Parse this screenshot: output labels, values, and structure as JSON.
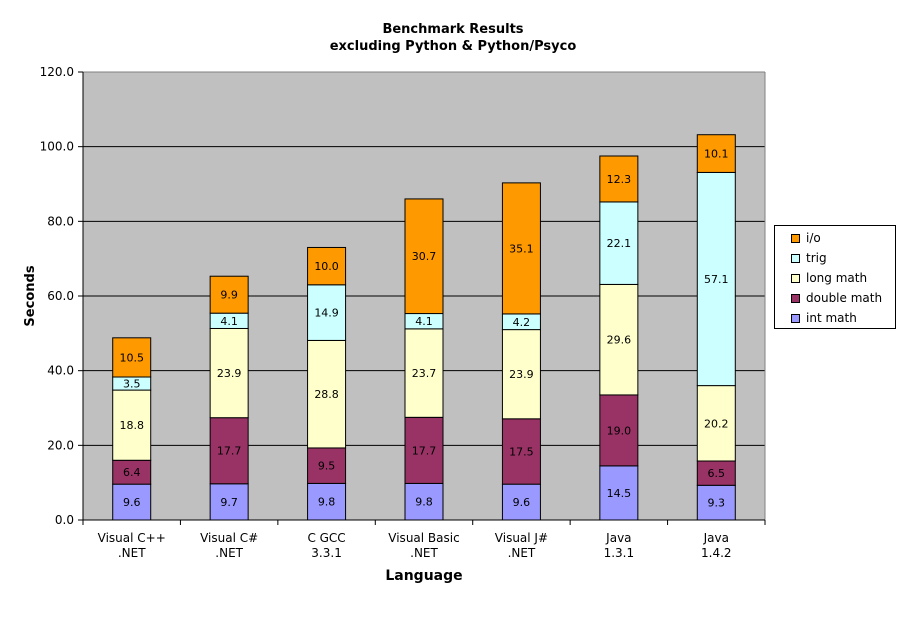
{
  "chart_data": {
    "type": "bar",
    "stacked": true,
    "title": "Benchmark Results",
    "subtitle": "excluding Python & Python/Psyco",
    "xlabel": "Language",
    "ylabel": "Seconds",
    "ylim": [
      0,
      120
    ],
    "yticks": [
      "0.0",
      "20.0",
      "40.0",
      "60.0",
      "80.0",
      "100.0",
      "120.0"
    ],
    "grid": true,
    "legend_position": "right",
    "categories": [
      [
        "Visual C++",
        ".NET"
      ],
      [
        "Visual C#",
        ".NET"
      ],
      [
        "C GCC",
        "3.3.1"
      ],
      [
        "Visual Basic",
        ".NET"
      ],
      [
        "Visual J#",
        ".NET"
      ],
      [
        "Java",
        "1.3.1"
      ],
      [
        "Java",
        "1.4.2"
      ]
    ],
    "series": [
      {
        "name": "int math",
        "color": "#9999ff",
        "values": [
          9.6,
          9.7,
          9.8,
          9.8,
          9.6,
          14.5,
          9.3
        ]
      },
      {
        "name": "double math",
        "color": "#993366",
        "values": [
          6.4,
          17.7,
          9.5,
          17.7,
          17.5,
          19.0,
          6.5
        ]
      },
      {
        "name": "long math",
        "color": "#ffffcc",
        "values": [
          18.8,
          23.9,
          28.8,
          23.7,
          23.9,
          29.6,
          20.2
        ]
      },
      {
        "name": "trig",
        "color": "#ccffff",
        "values": [
          3.5,
          4.1,
          14.9,
          4.1,
          4.2,
          22.1,
          57.1
        ]
      },
      {
        "name": "i/o",
        "color": "#ff9900",
        "values": [
          10.5,
          9.9,
          10.0,
          30.7,
          35.1,
          12.3,
          10.1
        ]
      }
    ]
  }
}
